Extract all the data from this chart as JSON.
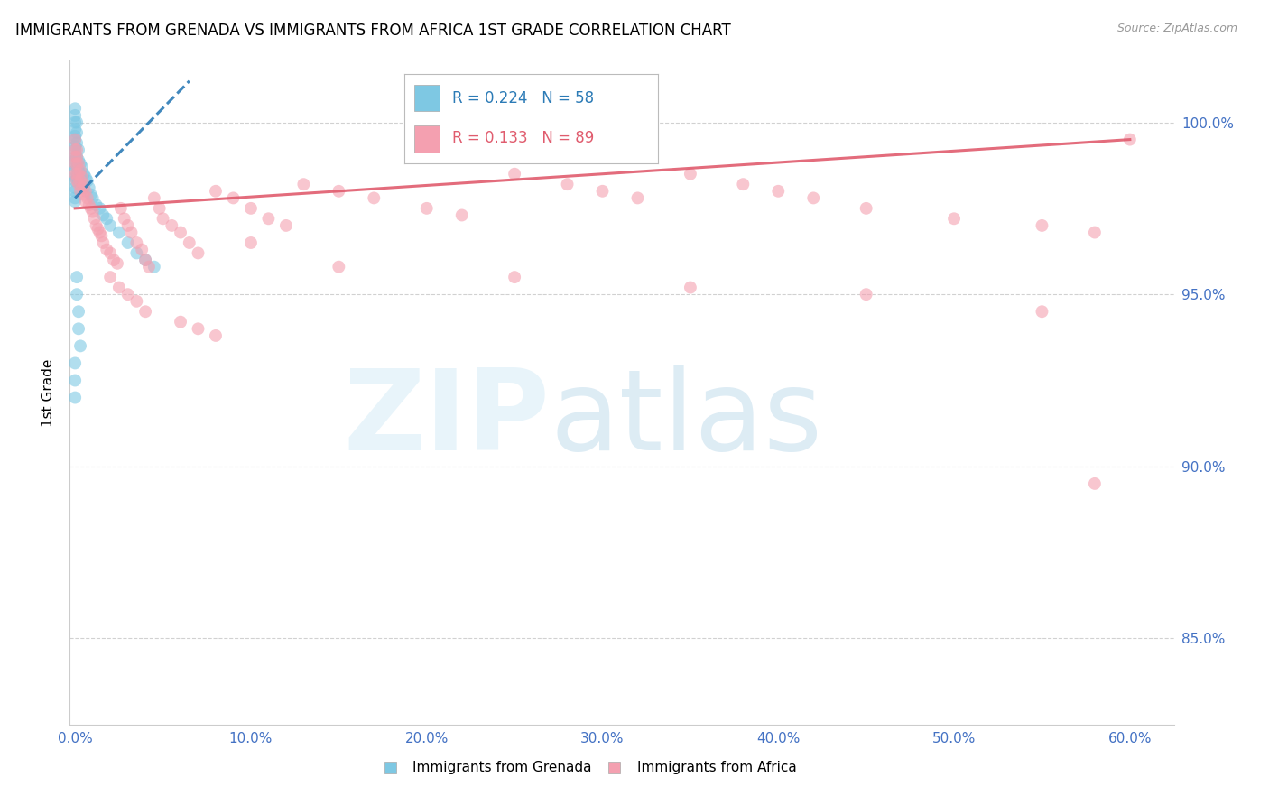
{
  "title": "IMMIGRANTS FROM GRENADA VS IMMIGRANTS FROM AFRICA 1ST GRADE CORRELATION CHART",
  "source": "Source: ZipAtlas.com",
  "ylabel": "1st Grade",
  "ymin": 82.5,
  "ymax": 101.8,
  "xmin": -0.003,
  "xmax": 0.625,
  "grenada_R": 0.224,
  "grenada_N": 58,
  "africa_R": 0.133,
  "africa_N": 89,
  "grenada_color": "#7ec8e3",
  "africa_color": "#f4a0b0",
  "grenada_line_color": "#2c7bb6",
  "africa_line_color": "#e05c6e",
  "tick_label_color": "#4472c4",
  "background_color": "#ffffff",
  "grid_color": "#cccccc",
  "ytick_vals": [
    85.0,
    90.0,
    95.0,
    100.0
  ],
  "ytick_labels": [
    "85.0%",
    "90.0%",
    "95.0%",
    "100.0%"
  ],
  "xtick_vals": [
    0.0,
    0.1,
    0.2,
    0.3,
    0.4,
    0.5,
    0.6
  ],
  "xtick_labels": [
    "0.0%",
    "10.0%",
    "20.0%",
    "30.0%",
    "40.0%",
    "50.0%",
    "60.0%"
  ],
  "grenada_line_x": [
    0.0,
    0.065
  ],
  "grenada_line_y": [
    97.8,
    101.2
  ],
  "africa_line_x": [
    0.0,
    0.6
  ],
  "africa_line_y": [
    97.5,
    99.5
  ],
  "legend_R1": "R = 0.224",
  "legend_N1": "N = 58",
  "legend_R2": "R = 0.133",
  "legend_N2": "N = 89",
  "bottom_legend1": "Immigrants from Grenada",
  "bottom_legend2": "Immigrants from Africa",
  "grenada_x": [
    0.0,
    0.0,
    0.0,
    0.0,
    0.0,
    0.0,
    0.0,
    0.0,
    0.0,
    0.0,
    0.0,
    0.0,
    0.0,
    0.0,
    0.0,
    0.0,
    0.0,
    0.0,
    0.001,
    0.001,
    0.001,
    0.001,
    0.001,
    0.001,
    0.002,
    0.002,
    0.002,
    0.002,
    0.003,
    0.003,
    0.003,
    0.004,
    0.004,
    0.005,
    0.005,
    0.006,
    0.007,
    0.008,
    0.009,
    0.01,
    0.012,
    0.014,
    0.016,
    0.018,
    0.02,
    0.025,
    0.03,
    0.035,
    0.04,
    0.045,
    0.001,
    0.001,
    0.002,
    0.002,
    0.003,
    0.0,
    0.0,
    0.0
  ],
  "grenada_y": [
    100.4,
    100.2,
    100.0,
    99.8,
    99.6,
    99.5,
    99.3,
    99.2,
    99.0,
    98.9,
    98.7,
    98.6,
    98.4,
    98.3,
    98.1,
    98.0,
    97.8,
    97.7,
    100.0,
    99.7,
    99.4,
    99.0,
    98.7,
    98.4,
    99.2,
    98.9,
    98.6,
    98.3,
    98.8,
    98.5,
    98.2,
    98.7,
    98.3,
    98.5,
    98.1,
    98.4,
    98.3,
    98.1,
    97.9,
    97.8,
    97.6,
    97.5,
    97.3,
    97.2,
    97.0,
    96.8,
    96.5,
    96.2,
    96.0,
    95.8,
    95.5,
    95.0,
    94.5,
    94.0,
    93.5,
    93.0,
    92.5,
    92.0
  ],
  "africa_x": [
    0.0,
    0.0,
    0.0,
    0.0,
    0.0,
    0.001,
    0.001,
    0.001,
    0.001,
    0.001,
    0.002,
    0.002,
    0.002,
    0.003,
    0.003,
    0.003,
    0.004,
    0.004,
    0.005,
    0.005,
    0.006,
    0.006,
    0.007,
    0.008,
    0.009,
    0.01,
    0.011,
    0.012,
    0.013,
    0.014,
    0.015,
    0.016,
    0.018,
    0.02,
    0.022,
    0.024,
    0.026,
    0.028,
    0.03,
    0.032,
    0.035,
    0.038,
    0.04,
    0.042,
    0.045,
    0.048,
    0.05,
    0.055,
    0.06,
    0.065,
    0.07,
    0.08,
    0.09,
    0.1,
    0.11,
    0.12,
    0.13,
    0.15,
    0.17,
    0.2,
    0.22,
    0.25,
    0.28,
    0.3,
    0.32,
    0.35,
    0.38,
    0.4,
    0.42,
    0.45,
    0.5,
    0.55,
    0.58,
    0.6,
    0.02,
    0.025,
    0.03,
    0.035,
    0.04,
    0.06,
    0.07,
    0.08,
    0.1,
    0.15,
    0.25,
    0.35,
    0.45,
    0.55,
    0.58
  ],
  "africa_y": [
    99.5,
    99.2,
    99.0,
    98.8,
    98.5,
    99.2,
    99.0,
    98.8,
    98.5,
    98.3,
    98.8,
    98.5,
    98.2,
    98.6,
    98.3,
    98.0,
    98.4,
    98.1,
    98.2,
    97.9,
    98.0,
    97.7,
    97.8,
    97.6,
    97.5,
    97.4,
    97.2,
    97.0,
    96.9,
    96.8,
    96.7,
    96.5,
    96.3,
    96.2,
    96.0,
    95.9,
    97.5,
    97.2,
    97.0,
    96.8,
    96.5,
    96.3,
    96.0,
    95.8,
    97.8,
    97.5,
    97.2,
    97.0,
    96.8,
    96.5,
    96.2,
    98.0,
    97.8,
    97.5,
    97.2,
    97.0,
    98.2,
    98.0,
    97.8,
    97.5,
    97.3,
    98.5,
    98.2,
    98.0,
    97.8,
    98.5,
    98.2,
    98.0,
    97.8,
    97.5,
    97.2,
    97.0,
    96.8,
    99.5,
    95.5,
    95.2,
    95.0,
    94.8,
    94.5,
    94.2,
    94.0,
    93.8,
    96.5,
    95.8,
    95.5,
    95.2,
    95.0,
    94.5,
    89.5
  ]
}
